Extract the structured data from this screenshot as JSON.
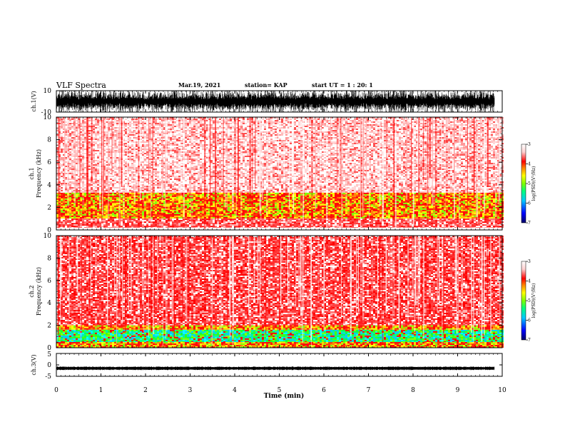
{
  "header": {
    "title": "VLF Spectra",
    "date": "Mar.19, 2021",
    "station": "station= KAP",
    "start_ut": "start  UT =   1 : 20: 1"
  },
  "chart_data": [
    {
      "id": "ch1-waveform",
      "type": "line",
      "ylabel": "ch.1(V)",
      "ylim": [
        -10,
        10
      ],
      "y_ticks": [
        "10",
        "-10"
      ],
      "xlim": [
        0,
        10
      ],
      "data_end_min": 9.83,
      "description_of_values": "dense waveform filling approximately -10 to 10 V",
      "color": "#000000"
    },
    {
      "id": "ch1-spectrogram",
      "type": "heatmap",
      "ylabel": "ch.1\nFrequency (kHz)",
      "ylim": [
        0,
        10
      ],
      "y_ticks": [
        "0",
        "2",
        "4",
        "6",
        "8",
        "10"
      ],
      "xlim": [
        0,
        10
      ],
      "colorbar": {
        "label": "log(PSD)(V²/Hz)",
        "range": [
          -7,
          -3
        ],
        "ticks": [
          "-3",
          "-4",
          "-5",
          "-6",
          "-7"
        ],
        "colors": [
          "#000066",
          "#0000ff",
          "#00c8ff",
          "#00ff80",
          "#7fff00",
          "#ffff00",
          "#ff8000",
          "#ff0000",
          "#ffd0d0",
          "#ffffff"
        ]
      },
      "bands": [
        {
          "from_khz": 3.3,
          "to_khz": 10,
          "level": "light-red"
        },
        {
          "from_khz": 1.0,
          "to_khz": 3.3,
          "level": "red-yellow"
        },
        {
          "from_khz": 0.2,
          "to_khz": 1.0,
          "level": "red"
        }
      ]
    },
    {
      "id": "ch2-spectrogram",
      "type": "heatmap",
      "ylabel": "ch.2\nFrequency (kHz)",
      "ylim": [
        0,
        10
      ],
      "y_ticks": [
        "0",
        "2",
        "4",
        "6",
        "8",
        "10"
      ],
      "xlim": [
        0,
        10
      ],
      "colorbar": {
        "label": "log(PSD)(V²/Hz)",
        "range": [
          -7,
          -3
        ],
        "ticks": [
          "-3",
          "-4",
          "-5",
          "-6",
          "-7"
        ],
        "colors": [
          "#000066",
          "#0000ff",
          "#00c8ff",
          "#00ff80",
          "#7fff00",
          "#ffff00",
          "#ff8000",
          "#ff0000",
          "#ffd0d0",
          "#ffffff"
        ]
      },
      "bands": [
        {
          "from_khz": 2.0,
          "to_khz": 10,
          "level": "red"
        },
        {
          "from_khz": 1.6,
          "to_khz": 2.0,
          "level": "red-yellow"
        },
        {
          "from_khz": 0.5,
          "to_khz": 1.6,
          "level": "green-cyan"
        },
        {
          "from_khz": 0,
          "to_khz": 0.5,
          "level": "red-yellow"
        }
      ]
    },
    {
      "id": "ch3-waveform",
      "type": "line",
      "ylabel": "ch.3(V)",
      "ylim": [
        -5,
        5
      ],
      "y_ticks": [
        "5",
        "0",
        "-5"
      ],
      "xlim": [
        0,
        10
      ],
      "data_end_min": 9.83,
      "level_v": -1.5,
      "color": "#000000"
    }
  ],
  "x_axis": {
    "label": "Time (min)",
    "ticks": [
      "0",
      "1",
      "2",
      "3",
      "4",
      "5",
      "6",
      "7",
      "8",
      "9",
      "10"
    ]
  }
}
